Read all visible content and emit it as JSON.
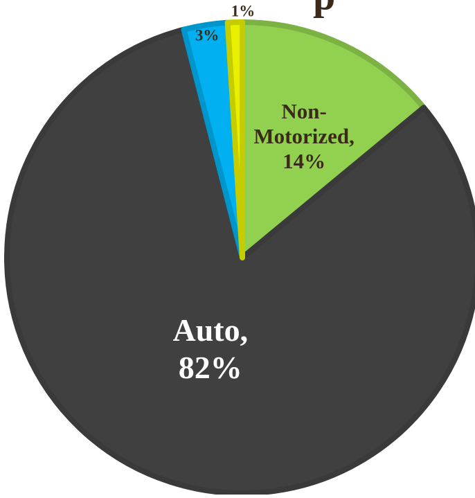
{
  "chart_data": {
    "type": "pie",
    "title": "",
    "start_angle_deg": 0,
    "direction": "clockwise",
    "slices": [
      {
        "label": "Non-Motorized",
        "value": 14,
        "color": "#92D050",
        "data_label_lines": [
          "Non-",
          "Motorized,",
          "14%"
        ],
        "label_color": "#3B2A1A"
      },
      {
        "label": "Auto",
        "value": 82,
        "color": "#404040",
        "data_label_lines": [
          "Auto,",
          "82%"
        ],
        "label_color": "#FFFFFF"
      },
      {
        "label": "",
        "value": 3,
        "color": "#00B0F0",
        "data_label_lines": [
          "3%"
        ],
        "label_color": "#3B2A1A"
      },
      {
        "label": "",
        "value": 1,
        "color": "#E8F000",
        "data_label_lines": [
          "1%"
        ],
        "label_color": "#3B2A1A"
      }
    ]
  },
  "page": {
    "title_fragment": "p"
  }
}
